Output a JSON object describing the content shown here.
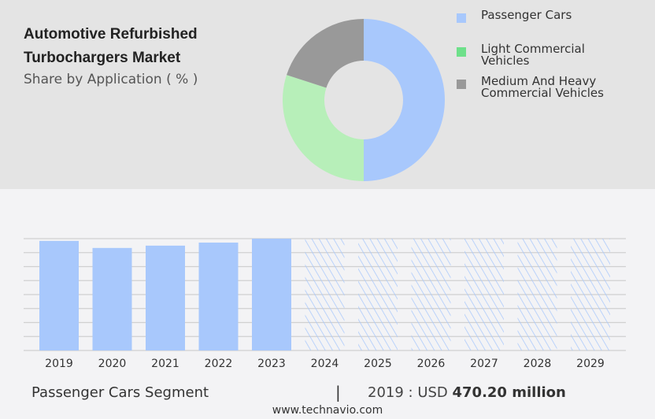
{
  "header": {
    "title": "Automotive Refurbished Turbochargers Market",
    "subtitle": "Share by Application ( % )"
  },
  "chart_data": [
    {
      "type": "pie",
      "variant": "donut",
      "title": "Share by Application ( % )",
      "categories": [
        "Passenger Cars",
        "Light Commercial Vehicles",
        "Medium And Heavy Commercial Vehicles"
      ],
      "values": [
        50,
        30,
        20
      ],
      "colors": [
        "#a8c8fc",
        "#b7efb9",
        "#999999"
      ],
      "legend_colors": [
        "#a8c8fc",
        "#6ee08a",
        "#999999"
      ],
      "legend": "right"
    },
    {
      "type": "bar",
      "title": "Passenger Cars Segment",
      "categories": [
        "2019",
        "2020",
        "2021",
        "2022",
        "2023",
        "2024",
        "2025",
        "2026",
        "2027",
        "2028",
        "2029"
      ],
      "values": [
        470.2,
        440,
        450,
        463,
        480,
        null,
        null,
        null,
        null,
        null,
        null
      ],
      "forecast": [
        false,
        false,
        false,
        false,
        false,
        true,
        true,
        true,
        true,
        true,
        true
      ],
      "ylim": [
        0,
        480
      ],
      "grid": true,
      "color": "#a8c8fc"
    }
  ],
  "footer": {
    "segment": "Passenger Cars Segment",
    "separator": "|",
    "year_prefix": "2019 : USD ",
    "value": "470.20 million",
    "url": "www.technavio.com"
  }
}
